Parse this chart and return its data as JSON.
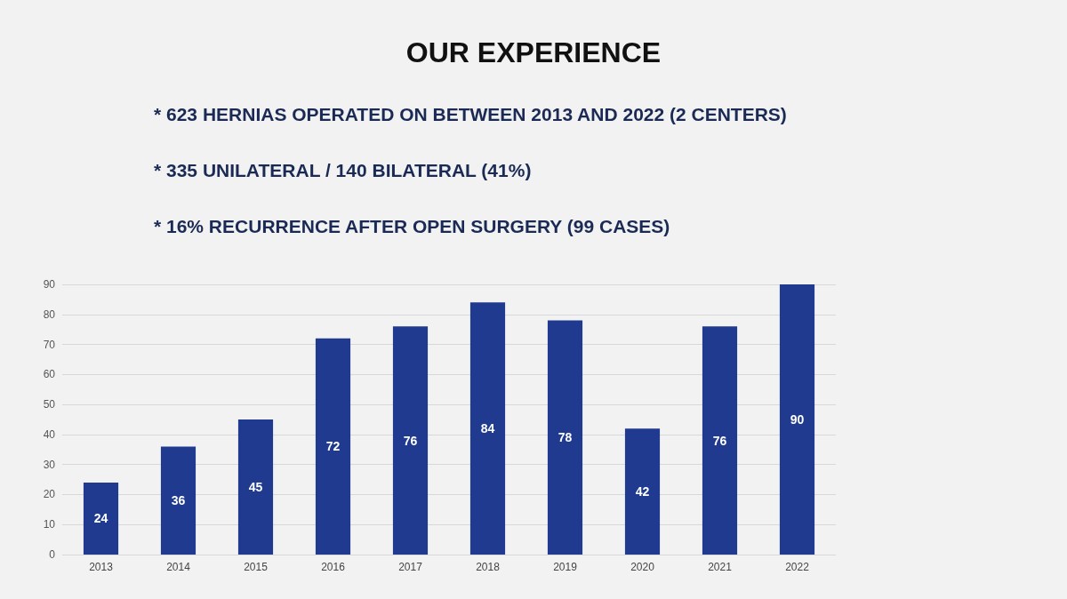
{
  "chart_data": {
    "type": "bar",
    "title": "OUR EXPERIENCE",
    "annotations": [
      "* 623 HERNIAS OPERATED ON BETWEEN 2013 AND 2022 (2 CENTERS)",
      "* 335 UNILATERAL / 140 BILATERAL (41%)",
      "* 16% RECURRENCE AFTER OPEN SURGERY (99 CASES)"
    ],
    "categories": [
      "2013",
      "2014",
      "2015",
      "2016",
      "2017",
      "2018",
      "2019",
      "2020",
      "2021",
      "2022"
    ],
    "values": [
      24,
      36,
      45,
      72,
      76,
      84,
      78,
      42,
      76,
      90
    ],
    "color": "#1f3a8f",
    "ylim": [
      0,
      90
    ],
    "yticks": [
      0,
      10,
      20,
      30,
      40,
      50,
      60,
      70,
      80,
      90
    ],
    "grid": "y",
    "data_labels": true
  }
}
